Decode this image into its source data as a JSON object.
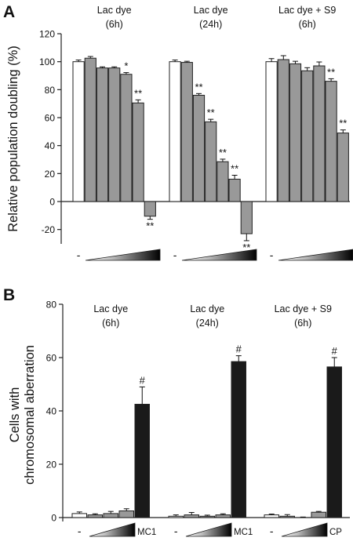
{
  "chart_data": [
    {
      "panel_label": "A",
      "type": "bar",
      "ylabel": "Relative population doubling (%)",
      "ylim": [
        -30,
        120
      ],
      "yticks": [
        -20,
        0,
        20,
        40,
        60,
        80,
        100,
        120
      ],
      "error_bars": true,
      "groups": [
        {
          "title_lines": [
            "Lac dye",
            "(6h)"
          ],
          "control_label": "-",
          "values": [
            100,
            102.5,
            95.5,
            95.5,
            91,
            70.5,
            -10.5
          ],
          "errors": [
            1.2,
            1.2,
            0.8,
            0.8,
            1.2,
            2.2,
            2.2
          ],
          "kinds": [
            "control",
            "dose",
            "dose",
            "dose",
            "dose",
            "dose",
            "dose"
          ],
          "sig": [
            "",
            "",
            "",
            "",
            "*",
            "**",
            "**"
          ]
        },
        {
          "title_lines": [
            "Lac dye",
            "(24h)"
          ],
          "control_label": "-",
          "values": [
            100,
            99.5,
            76,
            57,
            28.5,
            16,
            -23
          ],
          "errors": [
            1.2,
            0.8,
            1.2,
            1.8,
            1.8,
            2.8,
            5
          ],
          "kinds": [
            "control",
            "dose",
            "dose",
            "dose",
            "dose",
            "dose",
            "dose"
          ],
          "sig": [
            "",
            "",
            "**",
            "**",
            "**",
            "**",
            "**"
          ]
        },
        {
          "title_lines": [
            "Lac dye + S9",
            "(6h)"
          ],
          "control_label": "-",
          "values": [
            100,
            101.5,
            98.5,
            93.5,
            97,
            86,
            49
          ],
          "errors": [
            2.2,
            2.8,
            1.8,
            2.2,
            2.8,
            1.8,
            2.2
          ],
          "kinds": [
            "control",
            "dose",
            "dose",
            "dose",
            "dose",
            "dose",
            "dose"
          ],
          "sig": [
            "",
            "",
            "",
            "",
            "",
            "**",
            "**"
          ]
        }
      ]
    },
    {
      "panel_label": "B",
      "type": "bar",
      "ylabel_lines": [
        "Cells with",
        "chromosomal aberration"
      ],
      "ylim": [
        0,
        80
      ],
      "yticks": [
        0,
        20,
        40,
        60,
        80
      ],
      "error_bars": true,
      "groups": [
        {
          "title_lines": [
            "Lac dye",
            "(6h)"
          ],
          "control_label": "-",
          "positive_label": "MC1",
          "values": [
            1.5,
            1,
            1.5,
            2.5,
            42.5
          ],
          "errors": [
            0.6,
            0.4,
            0.8,
            0.8,
            6.5
          ],
          "kinds": [
            "control",
            "dose",
            "dose",
            "dose",
            "positive"
          ],
          "sig": [
            "",
            "",
            "",
            "",
            "#"
          ]
        },
        {
          "title_lines": [
            "Lac dye",
            "(24h)"
          ],
          "control_label": "-",
          "positive_label": "MC1",
          "values": [
            0.5,
            1,
            0.5,
            1,
            58.5
          ],
          "errors": [
            0.5,
            0.9,
            0.4,
            0.4,
            2.2
          ],
          "kinds": [
            "control",
            "dose",
            "dose",
            "dose",
            "positive"
          ],
          "sig": [
            "",
            "",
            "",
            "",
            "#"
          ]
        },
        {
          "title_lines": [
            "Lac dye + S9",
            "(6h)"
          ],
          "control_label": "-",
          "positive_label": "CP",
          "values": [
            1,
            0.5,
            0,
            2,
            56.5
          ],
          "errors": [
            0.3,
            0.6,
            0.2,
            0.3,
            3.5
          ],
          "kinds": [
            "control",
            "dose",
            "dose",
            "dose",
            "positive"
          ],
          "sig": [
            "",
            "",
            "",
            "",
            "#"
          ]
        }
      ]
    }
  ],
  "colors": {
    "control": "#ffffff",
    "dose": "#999999",
    "positive": "#1a1a1a",
    "outline": "#222222"
  }
}
